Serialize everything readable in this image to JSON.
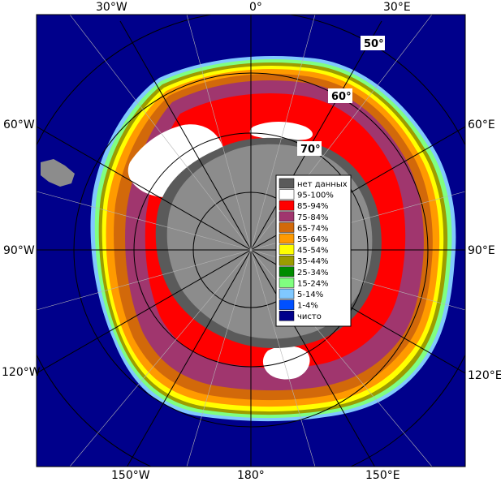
{
  "map": {
    "lon_labels": {
      "top": [
        "30°W",
        "0°",
        "30°E"
      ],
      "left": [
        "60°W",
        "90°W",
        "120°W"
      ],
      "right": [
        "60°E",
        "90°E",
        "120°E"
      ],
      "bottom": [
        "150°W",
        "180°",
        "150°E"
      ]
    },
    "lat_labels": [
      "50°",
      "60°",
      "70°"
    ]
  },
  "legend": {
    "items": [
      {
        "label": "нет данных",
        "color": "#5a5a5a"
      },
      {
        "label": "95-100%",
        "color": "#ffffff"
      },
      {
        "label": "85-94%",
        "color": "#ff0000"
      },
      {
        "label": "75-84%",
        "color": "#a0366e"
      },
      {
        "label": "65-74%",
        "color": "#d2690a"
      },
      {
        "label": "55-64%",
        "color": "#ff9a00"
      },
      {
        "label": "45-54%",
        "color": "#ffff00"
      },
      {
        "label": "35-44%",
        "color": "#9c9c00"
      },
      {
        "label": "25-34%",
        "color": "#008c00"
      },
      {
        "label": "15-24%",
        "color": "#80ff80"
      },
      {
        "label": "5-14%",
        "color": "#80c8ff"
      },
      {
        "label": "1-4%",
        "color": "#0050ff"
      },
      {
        "label": "чисто",
        "color": "#00008b"
      }
    ]
  },
  "colors": {
    "ocean": "#00008b",
    "land": "#8c8c8c",
    "no_data": "#5a5a5a",
    "grid": "#000000"
  }
}
